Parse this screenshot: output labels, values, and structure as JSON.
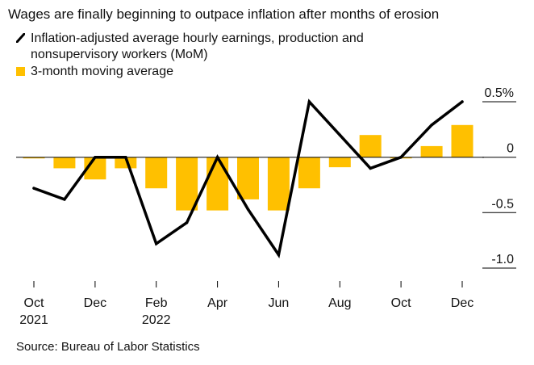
{
  "title": "Wages are finally beginning to outpace inflation after months of erosion",
  "legend": {
    "line_label": "Inflation-adjusted average hourly earnings, production and nonsupervisory workers (MoM)",
    "bar_label": "3-month moving average",
    "position": "top-left"
  },
  "source": "Source: Bureau of Labor Statistics",
  "chart_data": {
    "type": "bar",
    "x": [
      "Oct 2021",
      "Nov 2021",
      "Dec 2021",
      "Jan 2022",
      "Feb 2022",
      "Mar 2022",
      "Apr 2022",
      "May 2022",
      "Jun 2022",
      "Jul 2022",
      "Aug 2022",
      "Sep 2022",
      "Oct 2022",
      "Nov 2022",
      "Dec 2022"
    ],
    "series": [
      {
        "name": "3-month moving average",
        "type": "bar",
        "color": "#ffc000",
        "values": [
          -0.01,
          -0.1,
          -0.2,
          -0.1,
          -0.28,
          -0.48,
          -0.48,
          -0.38,
          -0.48,
          -0.28,
          -0.09,
          0.2,
          -0.01,
          0.1,
          0.29
        ]
      },
      {
        "name": "Inflation-adjusted average hourly earnings, production and nonsupervisory workers (MoM)",
        "type": "line",
        "color": "#000000",
        "values": [
          -0.28,
          -0.38,
          0.0,
          0.0,
          -0.78,
          -0.59,
          0.0,
          -0.47,
          -0.88,
          0.5,
          0.2,
          -0.1,
          0.0,
          0.29,
          0.5
        ]
      }
    ],
    "x_tick_labels": [
      {
        "index": 0,
        "line1": "Oct",
        "line2": "2021"
      },
      {
        "index": 2,
        "line1": "Dec",
        "line2": ""
      },
      {
        "index": 4,
        "line1": "Feb",
        "line2": "2022"
      },
      {
        "index": 6,
        "line1": "Apr",
        "line2": ""
      },
      {
        "index": 8,
        "line1": "Jun",
        "line2": ""
      },
      {
        "index": 10,
        "line1": "Aug",
        "line2": ""
      },
      {
        "index": 12,
        "line1": "Oct",
        "line2": ""
      },
      {
        "index": 14,
        "line1": "Dec",
        "line2": ""
      }
    ],
    "y_ticks": [
      {
        "value": 0.5,
        "label": "0.5%"
      },
      {
        "value": 0,
        "label": "0"
      },
      {
        "value": -0.5,
        "label": "-0.5"
      },
      {
        "value": -1.0,
        "label": "-1.0"
      }
    ],
    "ylim": [
      -1.0,
      0.5
    ],
    "xlabel": "",
    "ylabel": "",
    "grid": false
  }
}
